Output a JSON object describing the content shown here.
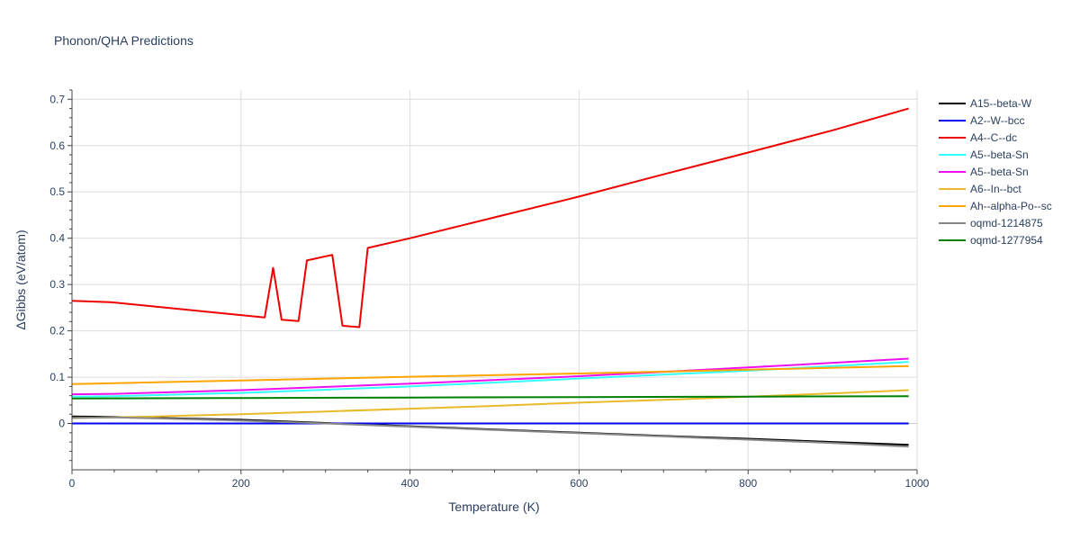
{
  "chart_data": {
    "type": "line",
    "title": "Phonon/QHA Predictions",
    "xlabel": "Temperature (K)",
    "ylabel": "ΔGibbs (eV/atom)",
    "xlim": [
      0,
      1000
    ],
    "ylim": [
      -0.1,
      0.72
    ],
    "x_ticks": [
      0,
      200,
      400,
      600,
      800,
      1000
    ],
    "y_ticks": [
      0,
      0.1,
      0.2,
      0.3,
      0.4,
      0.5,
      0.6,
      0.7
    ],
    "x_tick_labels": [
      "0",
      "200",
      "400",
      "600",
      "800",
      "1000"
    ],
    "y_tick_labels": [
      "0",
      "0.1",
      "0.2",
      "0.3",
      "0.4",
      "0.5",
      "0.6",
      "0.7"
    ],
    "grid": true,
    "legend_position": "right",
    "series": [
      {
        "name": "A15--beta-W",
        "color": "#000000",
        "x": [
          0,
          50,
          100,
          200,
          300,
          400,
          500,
          600,
          700,
          800,
          900,
          990
        ],
        "y": [
          0.015,
          0.014,
          0.012,
          0.008,
          0.001,
          -0.006,
          -0.013,
          -0.02,
          -0.027,
          -0.033,
          -0.04,
          -0.046
        ]
      },
      {
        "name": "A2--W--bcc",
        "color": "#0000ee",
        "x": [
          0,
          990
        ],
        "y": [
          0.0,
          0.0
        ]
      },
      {
        "name": "A4--C--dc",
        "color": "#ee0000",
        "x": [
          0,
          45,
          228,
          238,
          248,
          268,
          278,
          308,
          320,
          340,
          350,
          400,
          500,
          600,
          700,
          800,
          900,
          990
        ],
        "y": [
          0.265,
          0.262,
          0.229,
          0.336,
          0.224,
          0.221,
          0.352,
          0.364,
          0.211,
          0.208,
          0.379,
          0.4,
          0.445,
          0.49,
          0.538,
          0.585,
          0.633,
          0.68
        ]
      },
      {
        "name": "A5--beta-Sn",
        "color": "#33ffff",
        "x": [
          0,
          50,
          200,
          400,
          600,
          800,
          990
        ],
        "y": [
          0.058,
          0.059,
          0.066,
          0.08,
          0.097,
          0.114,
          0.133
        ]
      },
      {
        "name": "A5--beta-Sn",
        "color": "#ee11ee",
        "x": [
          0,
          50,
          200,
          400,
          600,
          800,
          990
        ],
        "y": [
          0.063,
          0.064,
          0.072,
          0.086,
          0.102,
          0.121,
          0.14
        ]
      },
      {
        "name": "A6--In--bct",
        "color": "#e8bb2a",
        "x": [
          0,
          100,
          200,
          300,
          400,
          500,
          600,
          700,
          800,
          900,
          990
        ],
        "y": [
          0.012,
          0.015,
          0.02,
          0.026,
          0.032,
          0.038,
          0.045,
          0.051,
          0.058,
          0.065,
          0.072
        ]
      },
      {
        "name": "Ah--alpha-Po--sc",
        "color": "#ffa500",
        "x": [
          0,
          200,
          400,
          600,
          800,
          990
        ],
        "y": [
          0.085,
          0.093,
          0.101,
          0.108,
          0.116,
          0.124
        ]
      },
      {
        "name": "oqmd-1214875",
        "color": "#888888",
        "x": [
          0,
          50,
          100,
          200,
          300,
          400,
          500,
          600,
          700,
          800,
          900,
          990
        ],
        "y": [
          0.012,
          0.013,
          0.011,
          0.006,
          0.0,
          -0.007,
          -0.014,
          -0.021,
          -0.028,
          -0.035,
          -0.042,
          -0.05
        ]
      },
      {
        "name": "oqmd-1277954",
        "color": "#008000",
        "x": [
          0,
          200,
          400,
          600,
          800,
          990
        ],
        "y": [
          0.054,
          0.055,
          0.056,
          0.057,
          0.058,
          0.059
        ]
      }
    ]
  }
}
